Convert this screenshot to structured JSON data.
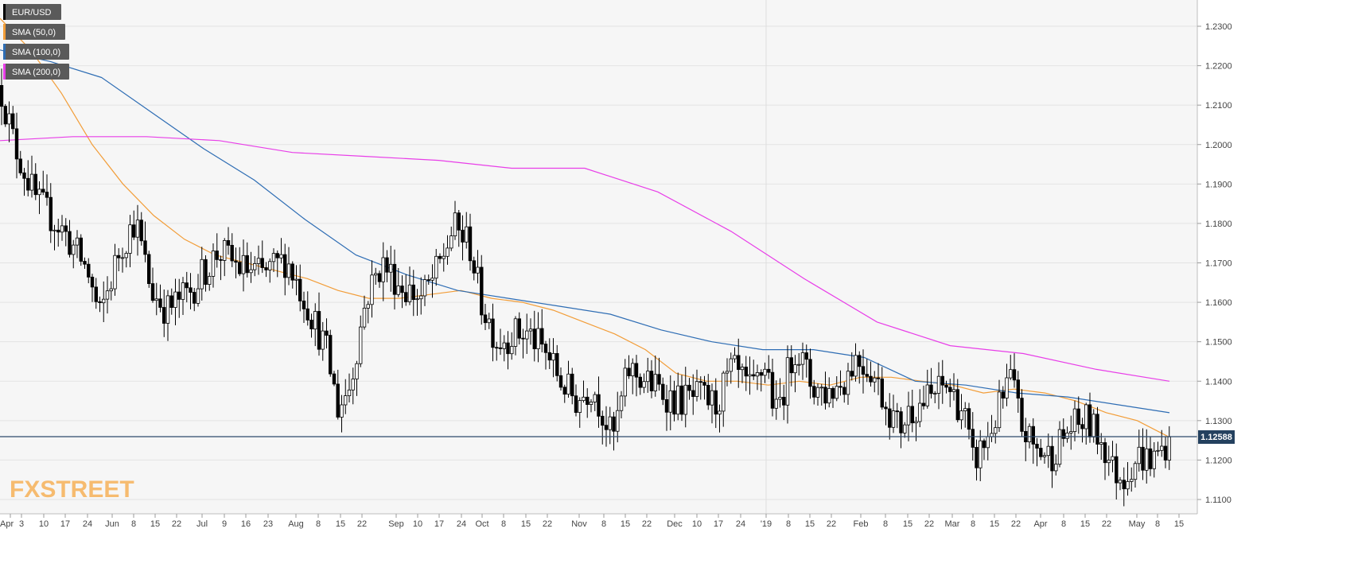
{
  "legend": [
    {
      "label": "EUR/USD",
      "color": "#000000"
    },
    {
      "label": "SMA (50,0)",
      "color": "#f29d38"
    },
    {
      "label": "SMA (100,0)",
      "color": "#2e6db4"
    },
    {
      "label": "SMA (200,0)",
      "color": "#e83ee8"
    }
  ],
  "watermark": "FXSTREET",
  "current_price_label": "1.12588",
  "chart_data": {
    "type": "line",
    "subtype": "candlestick",
    "title": "",
    "xlabel": "",
    "ylabel": "",
    "ylim": [
      1.105,
      1.236
    ],
    "y_ticks": [
      "1.1100",
      "1.1200",
      "1.1300",
      "1.1400",
      "1.1500",
      "1.1600",
      "1.1700",
      "1.1800",
      "1.1900",
      "1.2000",
      "1.2100",
      "1.2200",
      "1.2300"
    ],
    "x_ticks": [
      "Apr",
      "3",
      "10",
      "17",
      "24",
      "Jun",
      "8",
      "15",
      "22",
      "Jul",
      "9",
      "16",
      "23",
      "Aug",
      "8",
      "15",
      "22",
      "Sep",
      "10",
      "17",
      "24",
      "Oct",
      "8",
      "15",
      "22",
      "Nov",
      "8",
      "15",
      "22",
      "Dec",
      "10",
      "17",
      "24",
      "'19",
      "8",
      "15",
      "22",
      "Feb",
      "8",
      "15",
      "22",
      "Mar",
      "8",
      "15",
      "22",
      "Apr",
      "8",
      "15",
      "22",
      "May",
      "8",
      "15"
    ],
    "grid": true,
    "current_price": 1.12588,
    "series": [
      {
        "name": "EUR/USD",
        "style": "candles",
        "color": "#000000"
      },
      {
        "name": "SMA (50,0)",
        "color": "#f29d38",
        "values": [
          1.232,
          1.224,
          1.213,
          1.2,
          1.19,
          1.182,
          1.176,
          1.172,
          1.17,
          1.168,
          1.166,
          1.163,
          1.161,
          1.161,
          1.162,
          1.163,
          1.161,
          1.16,
          1.158,
          1.155,
          1.152,
          1.148,
          1.142,
          1.14,
          1.14,
          1.139,
          1.14,
          1.139,
          1.141,
          1.141,
          1.14,
          1.139,
          1.137,
          1.138,
          1.137,
          1.135,
          1.132,
          1.13,
          1.126
        ]
      },
      {
        "name": "SMA (100,0)",
        "color": "#2e6db4",
        "values": [
          1.224,
          1.221,
          1.217,
          1.208,
          1.199,
          1.191,
          1.181,
          1.172,
          1.167,
          1.163,
          1.161,
          1.159,
          1.157,
          1.153,
          1.15,
          1.148,
          1.148,
          1.146,
          1.14,
          1.139,
          1.137,
          1.136,
          1.134,
          1.132
        ]
      },
      {
        "name": "SMA (200,0)",
        "color": "#e83ee8",
        "values": [
          1.201,
          1.202,
          1.202,
          1.201,
          1.198,
          1.197,
          1.196,
          1.194,
          1.194,
          1.188,
          1.178,
          1.166,
          1.155,
          1.149,
          1.147,
          1.143,
          1.14
        ]
      }
    ]
  }
}
